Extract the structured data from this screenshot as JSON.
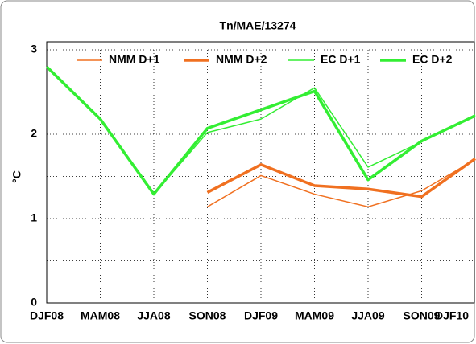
{
  "chart_data": {
    "type": "line",
    "title": "Tn/MAE/13274",
    "y_label": "°C",
    "categories": [
      "DJF08",
      "MAM08",
      "JJA08",
      "SON08",
      "DJF09",
      "MAM09",
      "JJA09",
      "SON09",
      "DJF10"
    ],
    "series": [
      {
        "name": "NMM D+1",
        "color": "#f07020",
        "width": 1.5,
        "values": [
          null,
          null,
          null,
          1.14,
          1.51,
          1.29,
          1.14,
          1.33,
          1.7
        ]
      },
      {
        "name": "NMM D+2",
        "color": "#f07020",
        "width": 3.5,
        "values": [
          null,
          null,
          null,
          1.31,
          1.64,
          1.39,
          1.35,
          1.26,
          1.71
        ]
      },
      {
        "name": "EC D+1",
        "color": "#33ee33",
        "width": 1.5,
        "values": [
          2.8,
          2.18,
          1.29,
          2.02,
          2.18,
          2.55,
          1.61,
          1.91,
          2.23
        ]
      },
      {
        "name": "EC D+2",
        "color": "#33ee33",
        "width": 3.5,
        "values": [
          2.8,
          2.18,
          1.29,
          2.07,
          2.29,
          2.51,
          1.46,
          1.92,
          2.22
        ]
      }
    ],
    "ylim": [
      0,
      3
    ],
    "yticks": [
      0,
      1,
      2,
      3
    ],
    "minor_yticks": [
      0.5,
      1.5,
      2.5
    ],
    "grid": true,
    "legend": "top"
  }
}
